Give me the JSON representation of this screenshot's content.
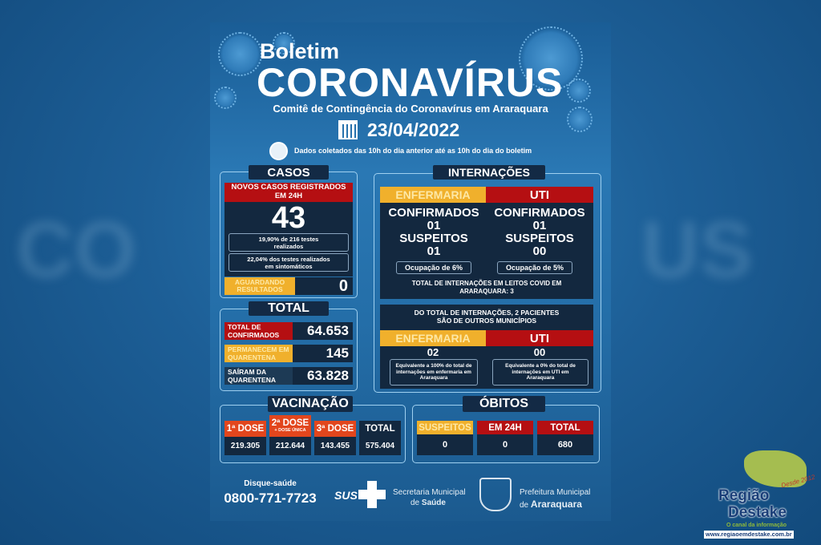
{
  "header": {
    "kicker": "Boletim",
    "title": "CORONAVÍRUS",
    "subtitle": "Comitê de Contingência do Coronavírus em Araraquara",
    "date": "23/04/2022",
    "data_note": "Dados coletados das 10h do dia anterior até as 10h do dia do boletim"
  },
  "casos": {
    "title": "CASOS",
    "new_label": "NOVOS CASOS REGISTRADOS EM 24H",
    "new_value": "43",
    "tests_note": "19,90% de 216 testes realizados",
    "symptomatic_note": "22,04% dos testes realizados em sintomáticos",
    "awaiting_label": "AGUARDANDO RESULTADOS",
    "awaiting_value": "0"
  },
  "total": {
    "title": "TOTAL",
    "rows": [
      {
        "label": "TOTAL DE CONFIRMADOS",
        "value": "64.653",
        "color": "#b50f12"
      },
      {
        "label": "PERMANECEM EM QUARENTENA",
        "value": "145",
        "color": "#f0b02c"
      },
      {
        "label": "SAÍRAM DA QUARENTENA",
        "value": "63.828",
        "color": "#1d3a55"
      }
    ]
  },
  "internacoes": {
    "title": "INTERNAÇÕES",
    "enfermaria": {
      "label": "ENFERMARIA",
      "confirmed_label": "CONFIRMADOS",
      "confirmed": "01",
      "suspected_label": "SUSPEITOS",
      "suspected": "01",
      "occupancy": "Ocupação de 6%"
    },
    "uti": {
      "label": "UTI",
      "confirmed_label": "CONFIRMADOS",
      "confirmed": "01",
      "suspected_label": "SUSPEITOS",
      "suspected": "00",
      "occupancy": "Ocupação de 5%"
    },
    "total_note": "TOTAL DE INTERNAÇÕES EM LEITOS COVID EM ARARAQUARA: 3",
    "other_note": "DO TOTAL DE INTERNAÇÕES, 2 PACIENTES SÃO DE OUTROS MUNICÍPIOS",
    "other_enfermaria": {
      "label": "ENFERMARIA",
      "value": "02",
      "note": "Equivalente a 100% do total de internações em enfermaria em Araraquara"
    },
    "other_uti": {
      "label": "UTI",
      "value": "00",
      "note": "Equivalente a 0% do total de internações em UTI em Araraquara"
    }
  },
  "vacinacao": {
    "title": "VACINAÇÃO",
    "items": [
      {
        "label": "1ª DOSE",
        "sub": "",
        "value": "219.305"
      },
      {
        "label": "2ª DOSE",
        "sub": "+ DOSE ÚNICA",
        "value": "212.644"
      },
      {
        "label": "3ª DOSE",
        "sub": "",
        "value": "143.455"
      },
      {
        "label": "TOTAL",
        "sub": "",
        "value": "575.404"
      }
    ]
  },
  "obitos": {
    "title": "ÓBITOS",
    "items": [
      {
        "label": "SUSPEITOS",
        "value": "0"
      },
      {
        "label": "EM 24H",
        "value": "0"
      },
      {
        "label": "TOTAL",
        "value": "680"
      }
    ]
  },
  "footer": {
    "hotline_label": "Disque-saúde",
    "hotline": "0800-771-7723",
    "sus": "SUS",
    "secretaria_line1": "Secretaria Municipal",
    "secretaria_line2_pre": "de ",
    "secretaria_line2": "Saúde",
    "prefeitura_line1": "Prefeitura Municipal",
    "prefeitura_line2_pre": "de ",
    "prefeitura_line2": "Araraquara"
  },
  "watermark": {
    "line1": "Região",
    "line2": "Destake",
    "tagline": "O canal da informação",
    "since": "Desde 2012",
    "url": "www.regiaoemdestake.com.br"
  }
}
